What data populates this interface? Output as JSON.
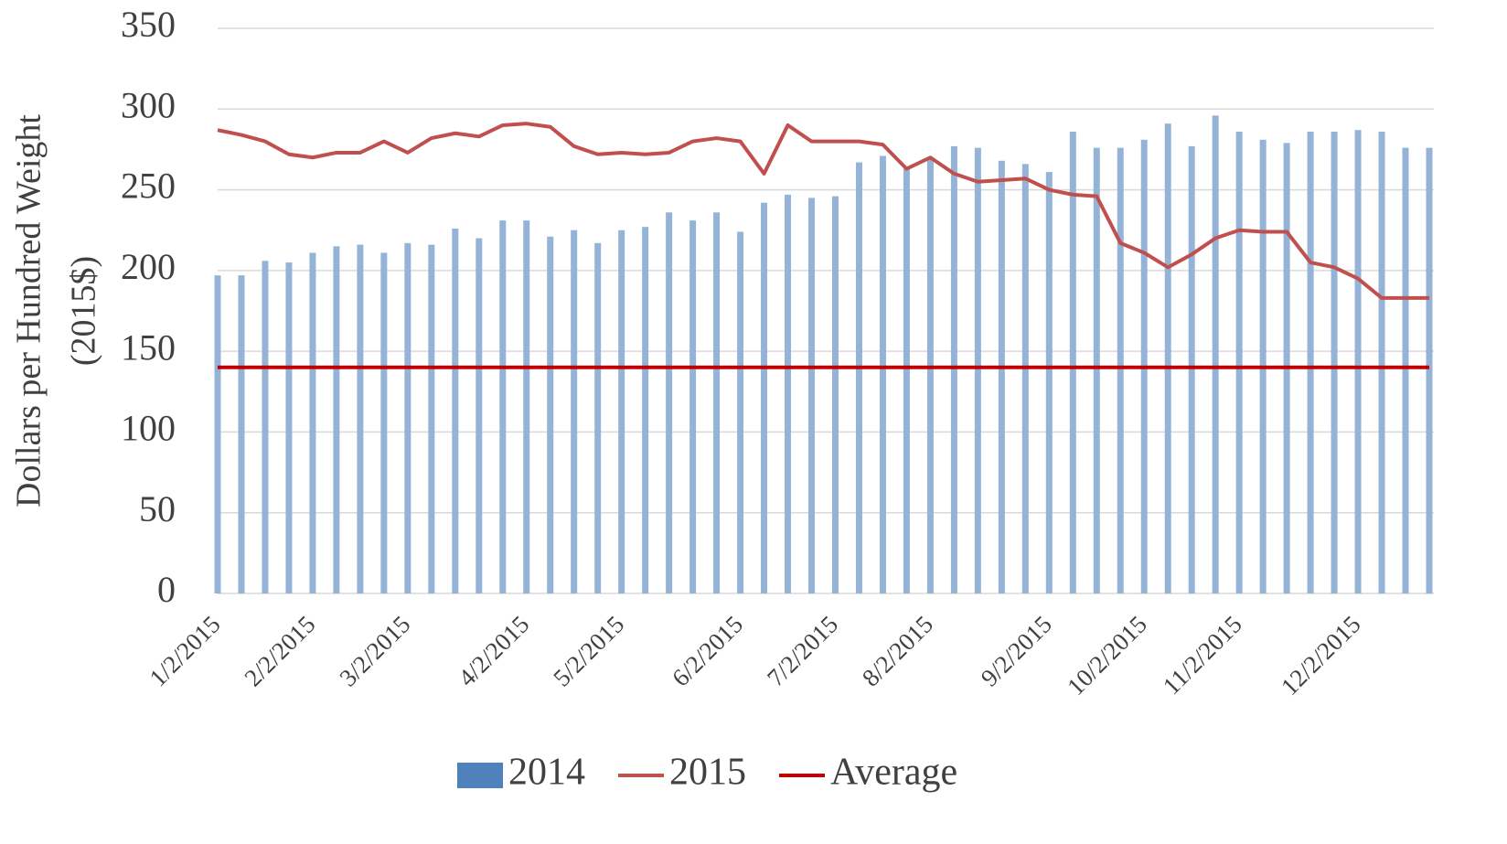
{
  "chart_data": {
    "type": "bar_line",
    "y_label": [
      "Dollars per Hundred Weight",
      "(2015$)"
    ],
    "categories": [
      "1/2/2015",
      null,
      null,
      null,
      "2/2/2015",
      null,
      null,
      null,
      "3/2/2015",
      null,
      null,
      null,
      null,
      "4/2/2015",
      null,
      null,
      null,
      "5/2/2015",
      null,
      null,
      null,
      null,
      "6/2/2015",
      null,
      null,
      null,
      "7/2/2015",
      null,
      null,
      null,
      "8/2/2015",
      null,
      null,
      null,
      null,
      "9/2/2015",
      null,
      null,
      null,
      "10/2/2015",
      null,
      null,
      null,
      "11/2/2015",
      null,
      null,
      null,
      null,
      "12/2/2015",
      null,
      null,
      null
    ],
    "series": [
      {
        "name": "2014",
        "kind": "bar",
        "color": "#95b3d7",
        "legend_color": "#4f81bd",
        "values": [
          197,
          197,
          206,
          205,
          211,
          215,
          216,
          211,
          217,
          216,
          226,
          220,
          231,
          231,
          221,
          225,
          217,
          225,
          227,
          236,
          231,
          236,
          224,
          242,
          247,
          245,
          246,
          267,
          271,
          263,
          270,
          277,
          276,
          268,
          266,
          261,
          286,
          276,
          276,
          281,
          291,
          277,
          296,
          286,
          281,
          279,
          286,
          286,
          287,
          286,
          276,
          276
        ]
      },
      {
        "name": "2015",
        "kind": "line",
        "color": "#c0504d",
        "values": [
          287,
          284,
          280,
          272,
          270,
          273,
          273,
          280,
          273,
          282,
          285,
          283,
          290,
          291,
          289,
          277,
          272,
          273,
          272,
          273,
          280,
          282,
          280,
          260,
          290,
          280,
          280,
          280,
          278,
          263,
          270,
          260,
          255,
          256,
          257,
          250,
          247,
          246,
          217,
          211,
          202,
          210,
          220,
          225,
          224,
          224,
          205,
          202,
          195,
          183,
          183,
          183
        ]
      },
      {
        "name": "Average",
        "kind": "line",
        "color": "#c00000",
        "values": [
          140,
          140,
          140,
          140,
          140,
          140,
          140,
          140,
          140,
          140,
          140,
          140,
          140,
          140,
          140,
          140,
          140,
          140,
          140,
          140,
          140,
          140,
          140,
          140,
          140,
          140,
          140,
          140,
          140,
          140,
          140,
          140,
          140,
          140,
          140,
          140,
          140,
          140,
          140,
          140,
          140,
          140,
          140,
          140,
          140,
          140,
          140,
          140,
          140,
          140,
          140,
          140
        ]
      }
    ],
    "ylim": [
      0,
      350
    ],
    "yticks": [
      0,
      50,
      100,
      150,
      200,
      250,
      300,
      350
    ],
    "grid": true,
    "legend": "bottom"
  }
}
